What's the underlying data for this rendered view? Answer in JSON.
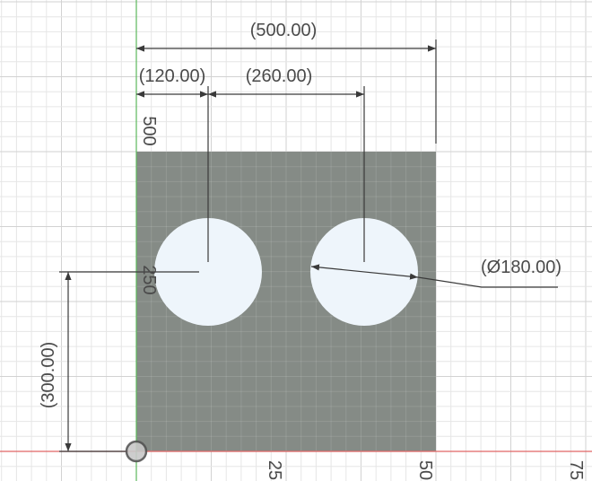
{
  "viewport": {
    "name": "sketch-canvas",
    "colors": {
      "background": "#ffffff",
      "grid_minor": "#e6e6e6",
      "grid_major": "#d2d2d2",
      "x_axis": "#e06666",
      "y_axis": "#5cb85c",
      "plate_fill": "#858b86",
      "hole_fill": "#eef5fb",
      "dimension_line": "#3a3a3a",
      "dimension_text": "#4a4a4a"
    }
  },
  "ruler": {
    "labels": [
      "25",
      "50",
      "75"
    ]
  },
  "sketch_labels": {
    "top_edge_value": "500",
    "hole_center_value": "250"
  },
  "dimensions": {
    "overall_width": "(500.00)",
    "hole1_offset": "(120.00)",
    "hole_spacing": "(260.00)",
    "hole_diameter": "(Ø180.00)",
    "hole_height": "(300.00)"
  }
}
